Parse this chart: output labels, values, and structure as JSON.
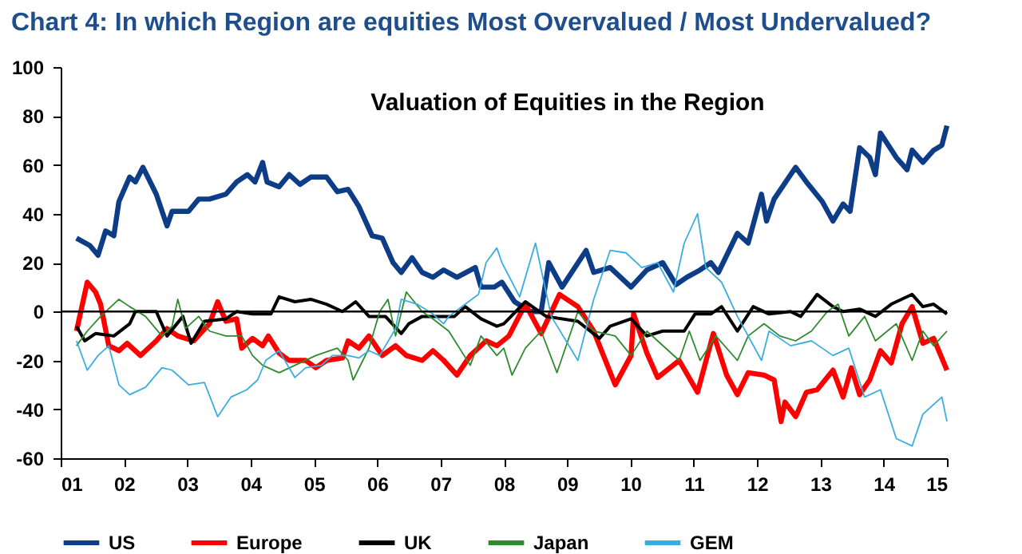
{
  "chart_data": {
    "type": "line",
    "title": "Chart 4: In which Region are equities Most Overvalued / Most Undervalued?",
    "annotations": [
      "Valuation of Equities in the Region"
    ],
    "xlim": [
      2001,
      2015
    ],
    "xticks": [
      {
        "value": 2001,
        "label": "01"
      },
      {
        "value": 2002,
        "label": "02"
      },
      {
        "value": 2003,
        "label": "03"
      },
      {
        "value": 2004,
        "label": "04"
      },
      {
        "value": 2005,
        "label": "05"
      },
      {
        "value": 2006,
        "label": "06"
      },
      {
        "value": 2007,
        "label": "07"
      },
      {
        "value": 2008,
        "label": "08"
      },
      {
        "value": 2009,
        "label": "09"
      },
      {
        "value": 2010,
        "label": "10"
      },
      {
        "value": 2011,
        "label": "11"
      },
      {
        "value": 2012,
        "label": "12"
      },
      {
        "value": 2013,
        "label": "13"
      },
      {
        "value": 2014,
        "label": "14"
      },
      {
        "value": 2015,
        "label": "15"
      }
    ],
    "ylim": [
      -60,
      100
    ],
    "yticks": [
      -60,
      -40,
      -20,
      0,
      20,
      40,
      60,
      80,
      100
    ],
    "ref_lines": [
      {
        "axis": "y",
        "value": 0,
        "color": "#000000"
      }
    ],
    "grid": false,
    "legend": "bottom",
    "marker": "none",
    "line_style": "solid",
    "series": [
      {
        "name": "US",
        "color": "#0d3d87",
        "x": [
          2001.25,
          2001.46,
          2001.59,
          2001.71,
          2001.84,
          2001.92,
          2002.09,
          2002.18,
          2002.3,
          2002.51,
          2002.68,
          2002.76,
          2003.02,
          2003.18,
          2003.35,
          2003.61,
          2003.78,
          2003.95,
          2004.07,
          2004.19,
          2004.26,
          2004.45,
          2004.61,
          2004.78,
          2004.95,
          2005.2,
          2005.37,
          2005.54,
          2005.71,
          2005.92,
          2006.08,
          2006.25,
          2006.38,
          2006.55,
          2006.71,
          2006.88,
          2007.05,
          2007.26,
          2007.55,
          2007.64,
          2007.85,
          2007.97,
          2008.17,
          2008.42,
          2008.59,
          2008.71,
          2008.92,
          2009.3,
          2009.42,
          2009.68,
          2010.01,
          2010.26,
          2010.51,
          2010.72,
          2010.89,
          2011.1,
          2011.27,
          2011.39,
          2011.69,
          2011.86,
          2012.07,
          2012.15,
          2012.27,
          2012.61,
          2012.78,
          2013.03,
          2013.2,
          2013.36,
          2013.47,
          2013.62,
          2013.78,
          2013.87,
          2013.95,
          2014.2,
          2014.37,
          2014.45,
          2014.62,
          2014.79,
          2014.92,
          2015.0
        ],
        "values": [
          30,
          27,
          23,
          33,
          31,
          45,
          55,
          53,
          59,
          48,
          35,
          41,
          41,
          46,
          46,
          48,
          53,
          56,
          53,
          61,
          53,
          51,
          56,
          52,
          55,
          55,
          49,
          50,
          43,
          31,
          30,
          20,
          16,
          22,
          16,
          14,
          17,
          14,
          18,
          10,
          10,
          12,
          4,
          0,
          0,
          20,
          10,
          25,
          16,
          18,
          10,
          17,
          20,
          11,
          14,
          17,
          20,
          16,
          32,
          28,
          48,
          37,
          46,
          59,
          53,
          45,
          37,
          44,
          41,
          67,
          63,
          56,
          73,
          63,
          58,
          66,
          61,
          66,
          68,
          76
        ]
      },
      {
        "name": "Europe",
        "color": "#ff0000",
        "x": [
          2001.25,
          2001.42,
          2001.55,
          2001.63,
          2001.76,
          2001.92,
          2002.05,
          2002.26,
          2002.51,
          2002.68,
          2002.85,
          2003.1,
          2003.35,
          2003.48,
          2003.61,
          2003.78,
          2003.86,
          2004.03,
          2004.19,
          2004.28,
          2004.45,
          2004.61,
          2004.87,
          2005.03,
          2005.2,
          2005.45,
          2005.54,
          2005.71,
          2005.87,
          2006.08,
          2006.29,
          2006.46,
          2006.71,
          2006.88,
          2007.05,
          2007.26,
          2007.47,
          2007.72,
          2007.89,
          2008.08,
          2008.34,
          2008.59,
          2008.88,
          2009.17,
          2009.42,
          2009.76,
          2010.01,
          2010.05,
          2010.26,
          2010.43,
          2010.77,
          2011.06,
          2011.31,
          2011.52,
          2011.69,
          2011.86,
          2012.11,
          2012.27,
          2012.38,
          2012.44,
          2012.61,
          2012.78,
          2012.95,
          2013.2,
          2013.36,
          2013.49,
          2013.62,
          2013.78,
          2013.95,
          2014.12,
          2014.29,
          2014.45,
          2014.62,
          2014.79,
          2015.0
        ],
        "values": [
          -8,
          12,
          8,
          3,
          -14,
          -16,
          -13,
          -18,
          -12,
          -7,
          -10,
          -12,
          -5,
          4,
          -4,
          -3,
          -15,
          -11,
          -14,
          -10,
          -17,
          -20,
          -20,
          -23,
          -20,
          -19,
          -12,
          -15,
          -10,
          -18,
          -14,
          -18,
          -20,
          -16,
          -20,
          -26,
          -18,
          -12,
          -14,
          -10,
          3,
          -9,
          7,
          2,
          -8,
          -30,
          -18,
          -1,
          -17,
          -27,
          -20,
          -33,
          -9,
          -26,
          -34,
          -25,
          -26,
          -28,
          -45,
          -37,
          -43,
          -33,
          -32,
          -24,
          -35,
          -23,
          -34,
          -28,
          -16,
          -21,
          -5,
          2,
          -13,
          -11,
          -24
        ]
      },
      {
        "name": "UK",
        "color": "#000000",
        "x": [
          2001.25,
          2001.38,
          2001.55,
          2001.84,
          2002.09,
          2002.18,
          2002.51,
          2002.68,
          2002.93,
          2003.06,
          2003.27,
          2003.61,
          2003.78,
          2004.03,
          2004.32,
          2004.45,
          2004.7,
          2004.95,
          2005.2,
          2005.45,
          2005.66,
          2005.87,
          2006.13,
          2006.38,
          2006.5,
          2006.71,
          2006.97,
          2007.22,
          2007.39,
          2007.64,
          2007.89,
          2008.0,
          2008.34,
          2008.67,
          2009.17,
          2009.51,
          2009.68,
          2010.01,
          2010.26,
          2010.51,
          2010.85,
          2011.02,
          2011.27,
          2011.44,
          2011.69,
          2011.94,
          2012.19,
          2012.53,
          2012.69,
          2012.95,
          2013.2,
          2013.36,
          2013.62,
          2013.87,
          2014.12,
          2014.45,
          2014.62,
          2014.79,
          2015.0
        ],
        "values": [
          -6,
          -12,
          -9,
          -10,
          -5,
          0,
          0,
          -10,
          -2,
          -13,
          -4,
          -3,
          0,
          -1,
          -1,
          6,
          4,
          5,
          3,
          0,
          4,
          -2,
          -2,
          -9,
          -5,
          -2,
          -2,
          -2,
          2,
          -3,
          -6,
          -5,
          4,
          -2,
          -4,
          -11,
          -6,
          -3,
          -10,
          -8,
          -8,
          -1,
          -1,
          2,
          -8,
          2,
          -1,
          0,
          -2,
          7,
          2,
          0,
          1,
          -2,
          3,
          7,
          2,
          3,
          -1
        ]
      },
      {
        "name": "Japan",
        "color": "#2e8b2e",
        "x": [
          2001.25,
          2001.42,
          2001.63,
          2001.92,
          2002.09,
          2002.34,
          2002.6,
          2002.76,
          2002.85,
          2002.97,
          2003.18,
          2003.35,
          2003.61,
          2003.86,
          2004.03,
          2004.19,
          2004.45,
          2004.7,
          2005.03,
          2005.37,
          2005.54,
          2005.62,
          2005.87,
          2006.04,
          2006.17,
          2006.29,
          2006.46,
          2006.71,
          2006.88,
          2007.13,
          2007.47,
          2007.64,
          2007.89,
          2008.0,
          2008.13,
          2008.34,
          2008.59,
          2008.84,
          2009.17,
          2009.42,
          2009.76,
          2010.01,
          2010.26,
          2010.43,
          2010.77,
          2010.93,
          2011.1,
          2011.35,
          2011.69,
          2011.86,
          2012.11,
          2012.36,
          2012.61,
          2012.86,
          2013.11,
          2013.28,
          2013.45,
          2013.7,
          2013.87,
          2014.2,
          2014.45,
          2014.62,
          2014.79,
          2015.0
        ],
        "values": [
          -14,
          -8,
          -2,
          5,
          2,
          -2,
          -10,
          -6,
          5,
          -7,
          -2,
          -8,
          -10,
          -10,
          -18,
          -22,
          -25,
          -22,
          -18,
          -15,
          -20,
          -28,
          -15,
          0,
          5,
          -10,
          8,
          0,
          -3,
          -8,
          -22,
          -10,
          -18,
          -15,
          -26,
          -15,
          -8,
          -25,
          0,
          -8,
          -10,
          -18,
          -8,
          -12,
          -20,
          -8,
          -20,
          -10,
          -20,
          -10,
          -5,
          -10,
          -12,
          -8,
          0,
          3,
          -10,
          -2,
          -12,
          -5,
          -20,
          -8,
          -14,
          -8
        ]
      },
      {
        "name": "GEM",
        "color": "#3aaee0",
        "x": [
          2001.25,
          2001.42,
          2001.59,
          2001.76,
          2001.92,
          2002.09,
          2002.34,
          2002.6,
          2002.76,
          2003.02,
          2003.27,
          2003.48,
          2003.69,
          2003.94,
          2004.11,
          2004.24,
          2004.45,
          2004.7,
          2004.87,
          2005.12,
          2005.29,
          2005.54,
          2005.71,
          2005.87,
          2006.04,
          2006.29,
          2006.38,
          2006.63,
          2006.88,
          2007.05,
          2007.13,
          2007.39,
          2007.6,
          2007.72,
          2007.89,
          2007.97,
          2008.25,
          2008.5,
          2008.75,
          2009.17,
          2009.42,
          2009.68,
          2009.93,
          2010.18,
          2010.43,
          2010.68,
          2010.85,
          2011.06,
          2011.19,
          2011.44,
          2011.69,
          2011.86,
          2012.07,
          2012.19,
          2012.53,
          2012.86,
          2013.2,
          2013.45,
          2013.7,
          2013.95,
          2014.2,
          2014.45,
          2014.62,
          2014.92,
          2015.0
        ],
        "values": [
          -12,
          -24,
          -18,
          -14,
          -30,
          -34,
          -31,
          -23,
          -24,
          -30,
          -29,
          -43,
          -35,
          -32,
          -28,
          -20,
          -16,
          -27,
          -23,
          -22,
          -18,
          -18,
          -19,
          -16,
          -18,
          -7,
          5,
          3,
          -1,
          -5,
          -2,
          3,
          7,
          20,
          26,
          20,
          6,
          28,
          -2,
          -20,
          5,
          25,
          24,
          18,
          20,
          8,
          28,
          40,
          18,
          12,
          -2,
          -10,
          -20,
          -8,
          -14,
          -12,
          -18,
          -15,
          -35,
          -32,
          -52,
          -55,
          -42,
          -35,
          -45
        ]
      }
    ]
  }
}
